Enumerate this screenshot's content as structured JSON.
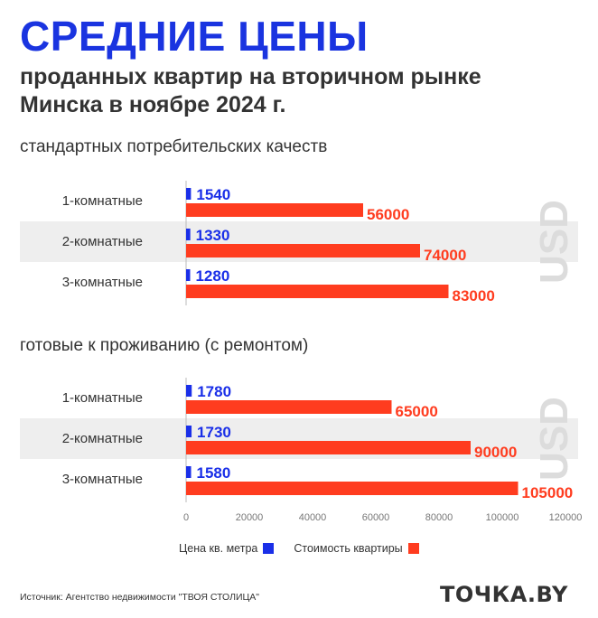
{
  "header": {
    "title": "СРЕДНИЕ ЦЕНЫ",
    "subtitle_line1": "проданных квартир на вторичном рынке",
    "subtitle_line2": "Минска в ноябре 2024 г."
  },
  "colors": {
    "title": "#1a34e0",
    "per_sqm": "#1a2fe8",
    "total": "#ff3c1f",
    "band": "#eeeeee",
    "watermark": "#dcdcdc"
  },
  "currency_watermark": "USD",
  "chart_data": [
    {
      "type": "bar",
      "title": "стандартных потребительских качеств",
      "categories": [
        "1-комнатные",
        "2-комнатные",
        "3-комнатные"
      ],
      "series": [
        {
          "name": "Цена кв. метра",
          "values": [
            1540,
            1330,
            1280
          ]
        },
        {
          "name": "Стоимость квартиры",
          "values": [
            56000,
            74000,
            83000
          ]
        }
      ],
      "xlim": [
        0,
        120000
      ],
      "orientation": "horizontal"
    },
    {
      "type": "bar",
      "title": "готовые к проживанию (с ремонтом)",
      "categories": [
        "1-комнатные",
        "2-комнатные",
        "3-комнатные"
      ],
      "series": [
        {
          "name": "Цена кв. метра",
          "values": [
            1780,
            1730,
            1580
          ]
        },
        {
          "name": "Стоимость квартиры",
          "values": [
            65000,
            90000,
            105000
          ]
        }
      ],
      "xlim": [
        0,
        120000
      ],
      "xticks": [
        0,
        20000,
        40000,
        60000,
        80000,
        100000,
        120000
      ],
      "orientation": "horizontal"
    }
  ],
  "legend": {
    "per_sqm_label": "Цена кв. метра",
    "total_label": "Стоимость квартиры",
    "position": "bottom"
  },
  "footer": {
    "source": "Источник: Агентство недвижимости \"ТВОЯ СТОЛИЦА\"",
    "logo": "ТОЧКА.BY"
  }
}
